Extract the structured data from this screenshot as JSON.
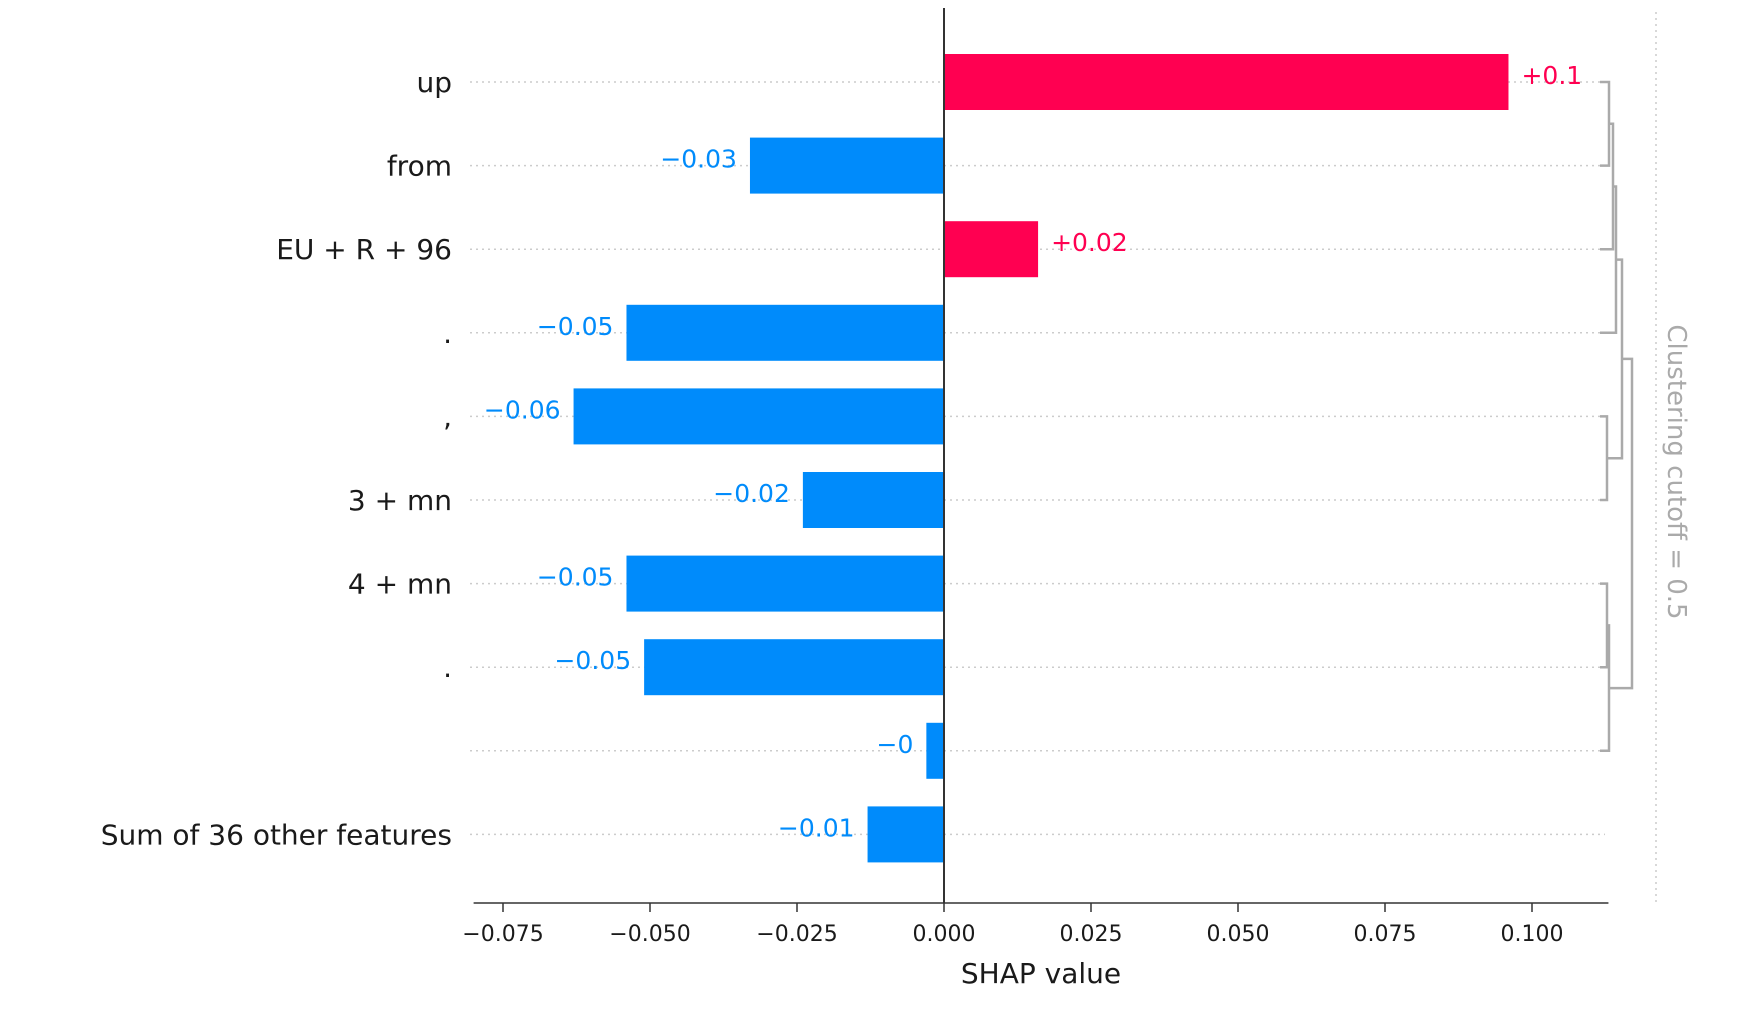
{
  "chart_data": {
    "type": "bar",
    "orientation": "horizontal",
    "categories": [
      "up",
      "from",
      "EU + R + 96",
      ".",
      ",",
      "3 + mn",
      "4 + mn",
      ".",
      "",
      "Sum of 36 other features"
    ],
    "values": [
      0.096,
      -0.033,
      0.016,
      -0.054,
      -0.063,
      -0.024,
      -0.054,
      -0.051,
      -0.003,
      -0.013
    ],
    "value_labels": [
      "+0.1",
      "−0.03",
      "+0.02",
      "−0.05",
      "−0.06",
      "−0.02",
      "−0.05",
      "−0.05",
      "−0",
      "−0.01"
    ],
    "xlabel": "SHAP value",
    "xlim": [
      -0.08,
      0.113
    ],
    "xticks": [
      -0.075,
      -0.05,
      -0.025,
      0.0,
      0.025,
      0.05,
      0.075,
      0.1
    ],
    "xtick_labels": [
      "−0.075",
      "−0.050",
      "−0.025",
      "0.000",
      "0.025",
      "0.050",
      "0.075",
      "0.100"
    ],
    "cutoff_label": "Clustering cutoff = 0.5",
    "grid": "horizontal dotted per feature",
    "colors": {
      "positive": "#ff0051",
      "negative": "#008bfb",
      "dendrogram": "#aaaaaa",
      "grid": "#cccccc",
      "axis": "#333333"
    }
  }
}
